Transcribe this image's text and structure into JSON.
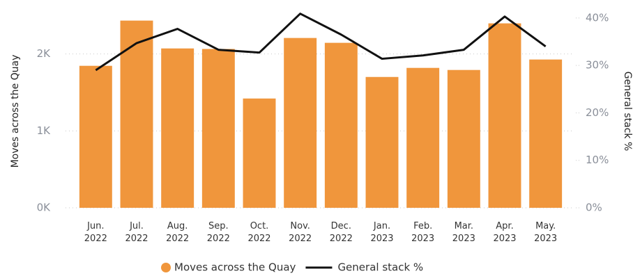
{
  "chart_data": {
    "type": "bar_line",
    "y_label": "Moves across the Quay",
    "y2_label": "General stack %",
    "categories": [
      "Jun. 2022",
      "Jul. 2022",
      "Aug. 2022",
      "Sep. 2022",
      "Oct. 2022",
      "Nov. 2022",
      "Dec. 2022",
      "Jan. 2023",
      "Feb. 2023",
      "Mar. 2023",
      "Apr. 2023",
      "May. 2023"
    ],
    "series": [
      {
        "name": "Moves across the Quay",
        "color": "#f0963c",
        "type": "bar",
        "values": [
          1846,
          2434,
          2072,
          2065,
          1421,
          2208,
          2145,
          1701,
          1819,
          1792,
          2398,
          1928
        ]
      },
      {
        "name": "General stack %",
        "color": "#111111",
        "type": "line",
        "axis": "y2",
        "values": [
          29.0,
          34.7,
          37.7,
          33.3,
          32.7,
          40.9,
          36.5,
          31.4,
          32.1,
          33.3,
          40.3,
          34.0
        ]
      }
    ],
    "ylim": [
      0,
      2530
    ],
    "yticks": [
      {
        "value": 0,
        "label": "0K"
      },
      {
        "value": 1000,
        "label": "1K"
      },
      {
        "value": 2000,
        "label": "2K"
      }
    ],
    "y2lim": [
      0,
      41
    ],
    "y2ticks": [
      {
        "value": 0,
        "label": "0%"
      },
      {
        "value": 10,
        "label": "10%"
      },
      {
        "value": 20,
        "label": "20%"
      },
      {
        "value": 30,
        "label": "30%"
      },
      {
        "value": 40,
        "label": "40%"
      }
    ],
    "grid": true
  }
}
